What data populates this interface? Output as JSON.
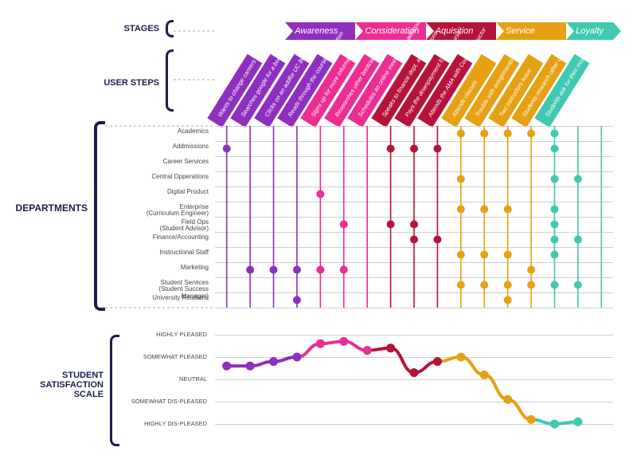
{
  "labels": {
    "stages": "STAGES",
    "userSteps": "USER STEPS",
    "departments": "DEPARTMENTS",
    "satisfaction": "STUDENT SATISFACTION SCALE"
  },
  "colors": {
    "ink": "#1a1f4d",
    "purple": "#8e2fbf",
    "pink": "#ec2d92",
    "red": "#b5133a",
    "orange": "#e6a013",
    "teal": "#3fc9b0"
  },
  "layout": {
    "chartLeft": 270,
    "chartRight": 770,
    "stagesTop": 28,
    "stepsTop": 130,
    "deptTop": 158,
    "deptRowH": 19,
    "deptRows": 12,
    "satTop": 420,
    "satRowH": 28,
    "satRows": 5
  },
  "stages": [
    {
      "label": "",
      "color": "#ffffff",
      "span": [
        0,
        3
      ],
      "textColor": "#fff"
    },
    {
      "label": "Awareness",
      "color": "#8e2fbf",
      "span": [
        3,
        6
      ]
    },
    {
      "label": "Consideration",
      "color": "#ec2d92",
      "span": [
        6,
        9
      ]
    },
    {
      "label": "Aquisition",
      "color": "#b5133a",
      "span": [
        9,
        12
      ]
    },
    {
      "label": "Service",
      "color": "#e6a013",
      "span": [
        12,
        15
      ]
    },
    {
      "label": "Loyalty",
      "color": "#3fc9b0",
      "span": [
        15,
        17
      ]
    }
  ],
  "steps": [
    {
      "label": "Wants to change careers",
      "color": "#8e2fbf"
    },
    {
      "label": "Searches google for a bootcamp",
      "color": "#8e2fbf"
    },
    {
      "label": "Clicks on an addfor UC Berkeley",
      "color": "#8e2fbf"
    },
    {
      "label": "Reads through the course description",
      "color": "#8e2fbf"
    },
    {
      "label": "Signs up for more information",
      "color": "#ec2d92"
    },
    {
      "label": "Researches other bootcamps",
      "color": "#ec2d92"
    },
    {
      "label": "Schedules an online meeting with admissions",
      "color": "#ec2d92"
    },
    {
      "label": "Speaks to finance dept. about options",
      "color": "#b5133a"
    },
    {
      "label": "Pays the downpayment for the course",
      "color": "#b5133a"
    },
    {
      "label": "Attends the AMA with Course instructor",
      "color": "#b5133a"
    },
    {
      "label": "Attends classes",
      "color": "#e6a013"
    },
    {
      "label": "Trouble with assignments",
      "color": "#e6a013"
    },
    {
      "label": "Two instructors leave",
      "color": "#e6a013"
    },
    {
      "label": "Students research other options",
      "color": "#e6a013"
    },
    {
      "label": "Students ask for their money back",
      "color": "#3fc9b0"
    },
    {
      "label": "",
      "color": "#3fc9b0"
    },
    {
      "label": "",
      "color": "#3fc9b0"
    }
  ],
  "departments": [
    "Academics",
    "Addmissions",
    "Career Services",
    "Central Opperations",
    "Digital Product",
    "Enterprise\n(Curriculum Engineer)",
    "Field Ops\n(Student Advisor)",
    "Finance/Accounting",
    "Instructional Staff",
    "Marketing",
    "Student Services\n(Student Success Manager)",
    "University Relations"
  ],
  "dots": [
    {
      "step": 0,
      "dept": 1,
      "c": "#8e2fbf"
    },
    {
      "step": 1,
      "dept": 9,
      "c": "#8e2fbf"
    },
    {
      "step": 2,
      "dept": 9,
      "c": "#8e2fbf"
    },
    {
      "step": 3,
      "dept": 9,
      "c": "#8e2fbf"
    },
    {
      "step": 3,
      "dept": 11,
      "c": "#8e2fbf"
    },
    {
      "step": 4,
      "dept": 4,
      "c": "#ec2d92"
    },
    {
      "step": 4,
      "dept": 9,
      "c": "#ec2d92"
    },
    {
      "step": 5,
      "dept": 6,
      "c": "#ec2d92"
    },
    {
      "step": 5,
      "dept": 9,
      "c": "#ec2d92"
    },
    {
      "step": 7,
      "dept": 1,
      "c": "#b5133a"
    },
    {
      "step": 7,
      "dept": 6,
      "c": "#b5133a"
    },
    {
      "step": 8,
      "dept": 1,
      "c": "#b5133a"
    },
    {
      "step": 8,
      "dept": 6,
      "c": "#b5133a"
    },
    {
      "step": 8,
      "dept": 7,
      "c": "#b5133a"
    },
    {
      "step": 9,
      "dept": 1,
      "c": "#b5133a"
    },
    {
      "step": 9,
      "dept": 7,
      "c": "#b5133a"
    },
    {
      "step": 10,
      "dept": 0,
      "c": "#e6a013"
    },
    {
      "step": 10,
      "dept": 3,
      "c": "#e6a013"
    },
    {
      "step": 10,
      "dept": 5,
      "c": "#e6a013"
    },
    {
      "step": 10,
      "dept": 8,
      "c": "#e6a013"
    },
    {
      "step": 10,
      "dept": 10,
      "c": "#e6a013"
    },
    {
      "step": 11,
      "dept": 0,
      "c": "#e6a013"
    },
    {
      "step": 11,
      "dept": 5,
      "c": "#e6a013"
    },
    {
      "step": 11,
      "dept": 8,
      "c": "#e6a013"
    },
    {
      "step": 11,
      "dept": 10,
      "c": "#e6a013"
    },
    {
      "step": 12,
      "dept": 0,
      "c": "#e6a013"
    },
    {
      "step": 12,
      "dept": 5,
      "c": "#e6a013"
    },
    {
      "step": 12,
      "dept": 8,
      "c": "#e6a013"
    },
    {
      "step": 12,
      "dept": 10,
      "c": "#e6a013"
    },
    {
      "step": 12,
      "dept": 11,
      "c": "#e6a013"
    },
    {
      "step": 13,
      "dept": 0,
      "c": "#e6a013"
    },
    {
      "step": 13,
      "dept": 9,
      "c": "#e6a013"
    },
    {
      "step": 13,
      "dept": 10,
      "c": "#e6a013"
    },
    {
      "step": 14,
      "dept": 0,
      "c": "#3fc9b0"
    },
    {
      "step": 14,
      "dept": 1,
      "c": "#3fc9b0"
    },
    {
      "step": 14,
      "dept": 3,
      "c": "#3fc9b0"
    },
    {
      "step": 14,
      "dept": 5,
      "c": "#3fc9b0"
    },
    {
      "step": 14,
      "dept": 6,
      "c": "#3fc9b0"
    },
    {
      "step": 14,
      "dept": 7,
      "c": "#3fc9b0"
    },
    {
      "step": 14,
      "dept": 8,
      "c": "#3fc9b0"
    },
    {
      "step": 14,
      "dept": 10,
      "c": "#3fc9b0"
    },
    {
      "step": 15,
      "dept": 3,
      "c": "#3fc9b0"
    },
    {
      "step": 15,
      "dept": 7,
      "c": "#3fc9b0"
    },
    {
      "step": 15,
      "dept": 10,
      "c": "#3fc9b0"
    }
  ],
  "satisfactionLevels": [
    "HIGHLY PLEASED",
    "SOMEWHAT PLEASED",
    "NEUTRAL",
    "SOMEWHAT DIS-PLEASED",
    "HIGHLY DIS-PLEASED"
  ],
  "satisfactionCurve": [
    {
      "step": 0,
      "level": 1.4,
      "c": "#8e2fbf"
    },
    {
      "step": 1,
      "level": 1.4,
      "c": "#8e2fbf"
    },
    {
      "step": 2,
      "level": 1.2,
      "c": "#8e2fbf"
    },
    {
      "step": 3,
      "level": 1.0,
      "c": "#8e2fbf"
    },
    {
      "step": 4,
      "level": 0.4,
      "c": "#ec2d92"
    },
    {
      "step": 5,
      "level": 0.3,
      "c": "#ec2d92"
    },
    {
      "step": 6,
      "level": 0.7,
      "c": "#ec2d92"
    },
    {
      "step": 7,
      "level": 0.6,
      "c": "#b5133a"
    },
    {
      "step": 8,
      "level": 1.7,
      "c": "#b5133a"
    },
    {
      "step": 9,
      "level": 1.2,
      "c": "#b5133a"
    },
    {
      "step": 10,
      "level": 1.0,
      "c": "#e6a013"
    },
    {
      "step": 11,
      "level": 1.8,
      "c": "#e6a013"
    },
    {
      "step": 12,
      "level": 2.9,
      "c": "#e6a013"
    },
    {
      "step": 13,
      "level": 3.8,
      "c": "#e6a013"
    },
    {
      "step": 14,
      "level": 4.0,
      "c": "#3fc9b0"
    },
    {
      "step": 15,
      "level": 3.9,
      "c": "#3fc9b0"
    }
  ]
}
